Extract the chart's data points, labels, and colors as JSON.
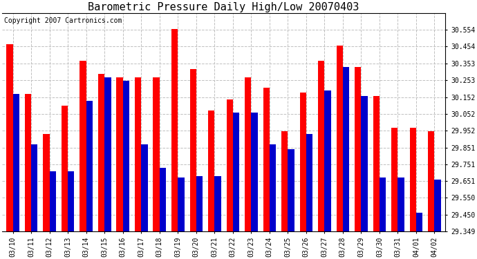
{
  "title": "Barometric Pressure Daily High/Low 20070403",
  "copyright": "Copyright 2007 Cartronics.com",
  "categories": [
    "03/10",
    "03/11",
    "03/12",
    "03/13",
    "03/14",
    "03/15",
    "03/16",
    "03/17",
    "03/18",
    "03/19",
    "03/20",
    "03/21",
    "03/22",
    "03/23",
    "03/24",
    "03/25",
    "03/26",
    "03/27",
    "03/28",
    "03/29",
    "03/30",
    "03/31",
    "04/01",
    "04/02"
  ],
  "highs": [
    30.47,
    30.17,
    29.93,
    30.1,
    30.37,
    30.29,
    30.27,
    30.27,
    30.27,
    30.56,
    30.32,
    30.07,
    30.14,
    30.27,
    30.21,
    29.95,
    30.18,
    30.37,
    30.46,
    30.33,
    30.16,
    29.97,
    29.97,
    29.95
  ],
  "lows": [
    30.17,
    29.87,
    29.71,
    29.71,
    30.13,
    30.27,
    30.25,
    29.87,
    29.73,
    29.67,
    29.68,
    29.68,
    30.06,
    30.06,
    29.87,
    29.84,
    29.93,
    30.19,
    30.33,
    30.16,
    29.67,
    29.67,
    29.46,
    29.66
  ],
  "ylim_min": 29.349,
  "ylim_max": 30.654,
  "yticks": [
    29.349,
    29.45,
    29.55,
    29.651,
    29.751,
    29.851,
    29.952,
    30.052,
    30.152,
    30.253,
    30.353,
    30.454,
    30.554
  ],
  "ytick_labels": [
    "29.349",
    "29.450",
    "29.550",
    "29.651",
    "29.751",
    "29.851",
    "29.952",
    "30.052",
    "30.152",
    "30.253",
    "30.353",
    "30.454",
    "30.554"
  ],
  "bar_width": 0.35,
  "high_color": "#ff0000",
  "low_color": "#0000cc",
  "bg_color": "#ffffff",
  "grid_color": "#c0c0c0",
  "title_fontsize": 11,
  "copyright_fontsize": 7,
  "tick_fontsize": 7,
  "figwidth": 6.9,
  "figheight": 3.75,
  "dpi": 100
}
